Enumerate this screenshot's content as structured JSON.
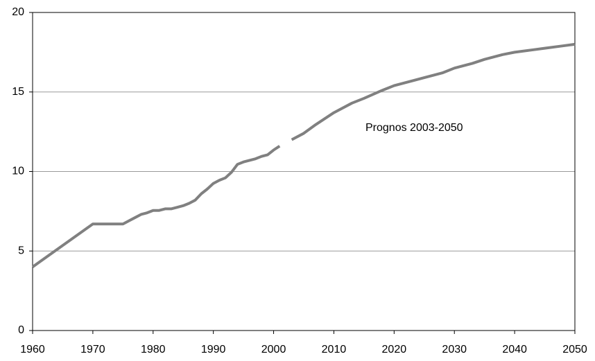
{
  "chart_data": {
    "type": "line",
    "annotations": [
      "Prognos 2003-2050"
    ],
    "x": [
      1960,
      1970,
      1975,
      1976,
      1977,
      1978,
      1979,
      1980,
      1981,
      1982,
      1983,
      1984,
      1985,
      1986,
      1987,
      1988,
      1989,
      1990,
      1991,
      1992,
      1993,
      1994,
      1995,
      1996,
      1997,
      1998,
      1999,
      2000,
      2001,
      2002,
      2003,
      2005,
      2007,
      2010,
      2013,
      2015,
      2018,
      2020,
      2023,
      2025,
      2028,
      2030,
      2033,
      2035,
      2038,
      2040,
      2043,
      2045,
      2048,
      2050
    ],
    "series": [
      {
        "color": "#808080",
        "values": [
          4.0,
          6.7,
          6.7,
          6.9,
          7.1,
          7.3,
          7.4,
          7.55,
          7.55,
          7.65,
          7.65,
          7.75,
          7.85,
          8.0,
          8.2,
          8.6,
          8.9,
          9.25,
          9.45,
          9.6,
          9.95,
          10.45,
          10.6,
          10.7,
          10.8,
          10.95,
          11.05,
          11.35,
          11.6,
          null,
          12.0,
          12.4,
          12.95,
          13.7,
          14.3,
          14.6,
          15.1,
          15.4,
          15.7,
          15.9,
          16.2,
          16.5,
          16.8,
          17.05,
          17.35,
          17.5,
          17.65,
          17.75,
          17.9,
          18.0
        ]
      }
    ],
    "xlim": [
      1960,
      2050
    ],
    "xticks": [
      1960,
      1970,
      1980,
      1990,
      2000,
      2010,
      2020,
      2030,
      2040,
      2050
    ],
    "ylim": [
      0,
      20
    ],
    "yticks": [
      0,
      5,
      10,
      15,
      20
    ],
    "grid": true
  }
}
